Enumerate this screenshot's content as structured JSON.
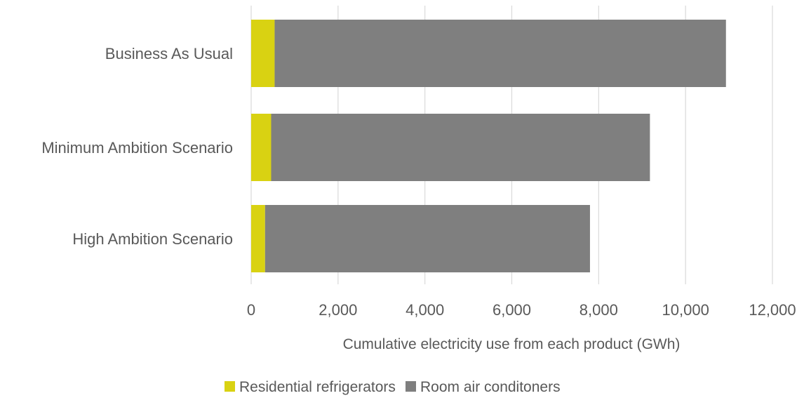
{
  "chart_data": {
    "type": "bar",
    "orientation": "horizontal",
    "stacked": true,
    "categories": [
      "Business As Usual",
      "Minimum Ambition Scenario",
      "High Ambition Scenario"
    ],
    "series": [
      {
        "name": "Residential refrigerators",
        "color": "#d9d212",
        "values": [
          540,
          460,
          320
        ]
      },
      {
        "name": "Room air conditoners",
        "color": "#7f7f7f",
        "values": [
          10390,
          8720,
          7480
        ]
      }
    ],
    "xlabel": "Cumulative electricity use from each product (GWh)",
    "ylabel": "",
    "xlim": [
      0,
      12000
    ],
    "xticks": [
      0,
      2000,
      4000,
      6000,
      8000,
      10000,
      12000
    ],
    "xtick_labels": [
      "0",
      "2,000",
      "4,000",
      "6,000",
      "8,000",
      "10,000",
      "12,000"
    ],
    "grid": "vertical",
    "legend": "bottom"
  }
}
